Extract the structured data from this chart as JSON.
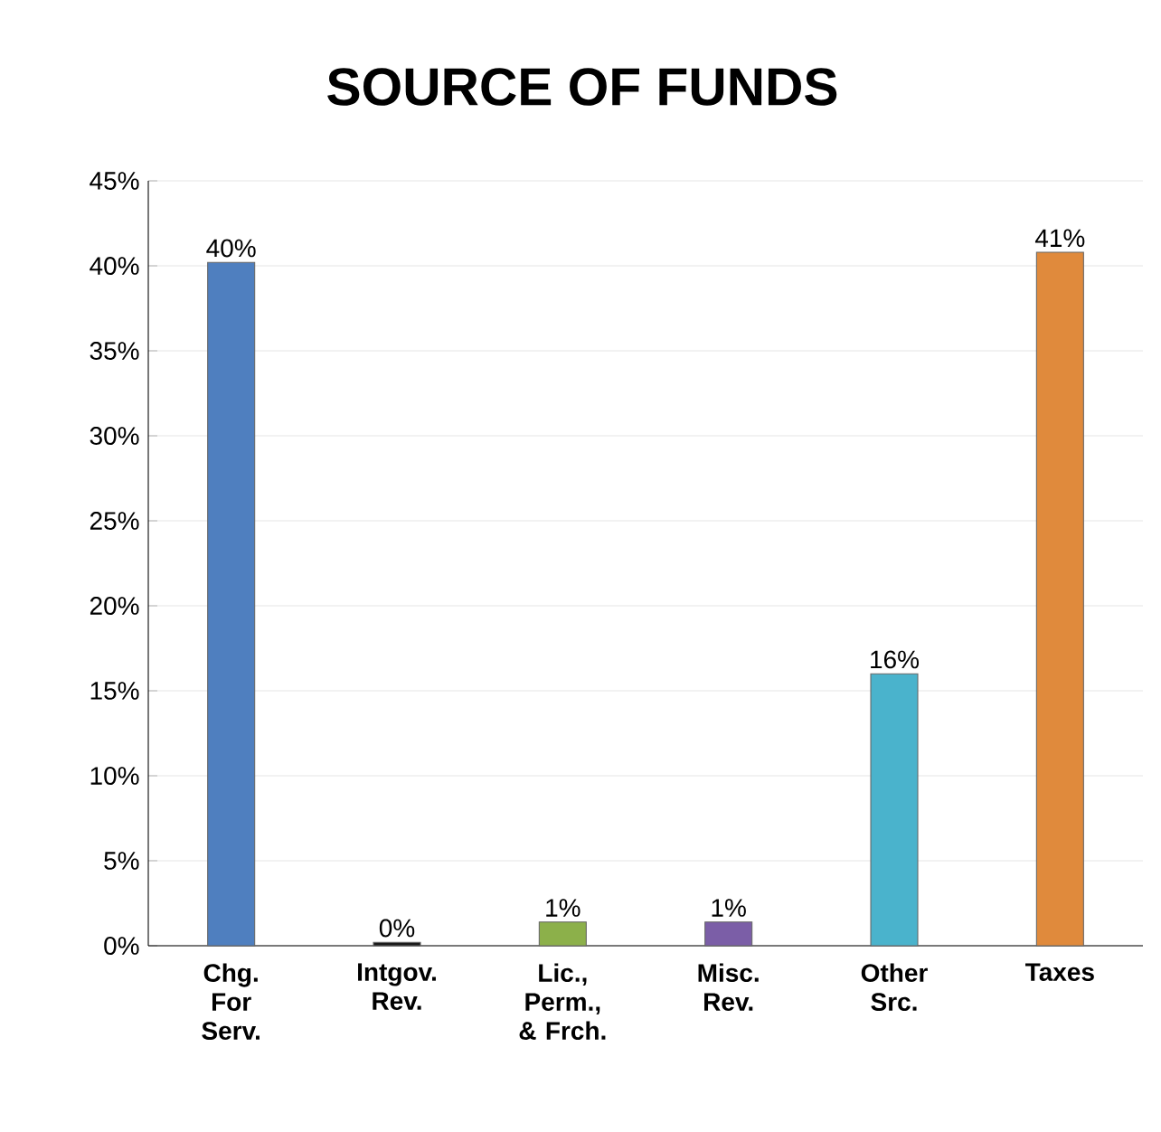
{
  "chart_data": {
    "type": "bar",
    "title": "SOURCE OF FUNDS",
    "categories": [
      "Chg. For Serv.",
      "Intgov. Rev.",
      "Lic., Perm., & Frch.",
      "Misc. Rev.",
      "Other Src.",
      "Taxes"
    ],
    "values": [
      40.2,
      0.2,
      1.4,
      1.4,
      16,
      40.8
    ],
    "value_labels": [
      "40%",
      "0%",
      "1%",
      "1%",
      "16%",
      "41%"
    ],
    "colors": [
      "#4f7fbf",
      "#1a1a1a",
      "#8cb04a",
      "#7b5ea7",
      "#4ab3cc",
      "#e08a3c"
    ],
    "ylim": [
      0,
      45
    ],
    "yticks": [
      {
        "value": 0,
        "label": "0%"
      },
      {
        "value": 5,
        "label": "5%"
      },
      {
        "value": 10,
        "label": "10%"
      },
      {
        "value": 15,
        "label": "15%"
      },
      {
        "value": 20,
        "label": "20%"
      },
      {
        "value": 25,
        "label": "25%"
      },
      {
        "value": 30,
        "label": "30%"
      },
      {
        "value": 35,
        "label": "35%"
      },
      {
        "value": 40,
        "label": "40%"
      },
      {
        "value": 45,
        "label": "45%"
      }
    ],
    "grid": "y"
  }
}
